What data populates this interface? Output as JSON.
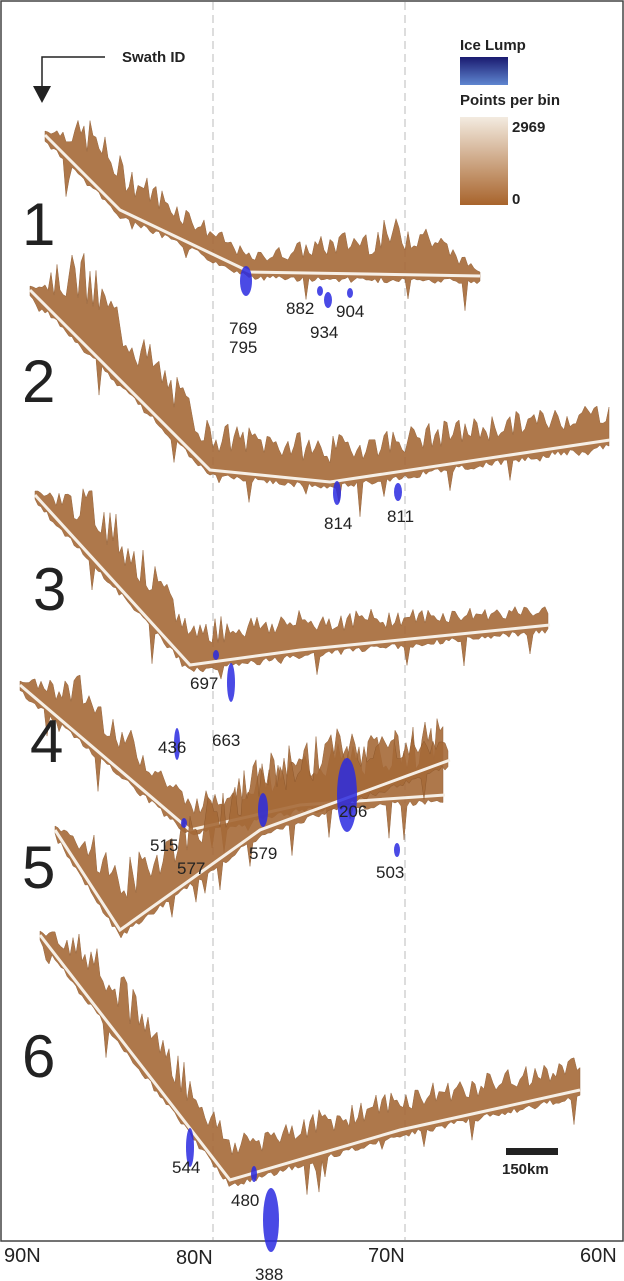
{
  "header": {
    "title": "Swath ID"
  },
  "legend": {
    "ice_lump": "Ice Lump",
    "points_per_bin": "Points per bin",
    "max": "2969",
    "min": "0"
  },
  "swaths": [
    {
      "id": "1",
      "lumps": [
        "769",
        "795",
        "882",
        "934",
        "904"
      ]
    },
    {
      "id": "2",
      "lumps": [
        "814",
        "811"
      ]
    },
    {
      "id": "3",
      "lumps": [
        "697",
        "663"
      ]
    },
    {
      "id": "4",
      "lumps": [
        "515",
        "577",
        "579",
        "503"
      ]
    },
    {
      "id": "5",
      "lumps": [
        "436",
        "206"
      ]
    },
    {
      "id": "6",
      "lumps": [
        "544",
        "480",
        "388"
      ]
    }
  ],
  "scale_bar": "150km",
  "x_axis": [
    "90N",
    "80N",
    "70N",
    "60N"
  ]
}
